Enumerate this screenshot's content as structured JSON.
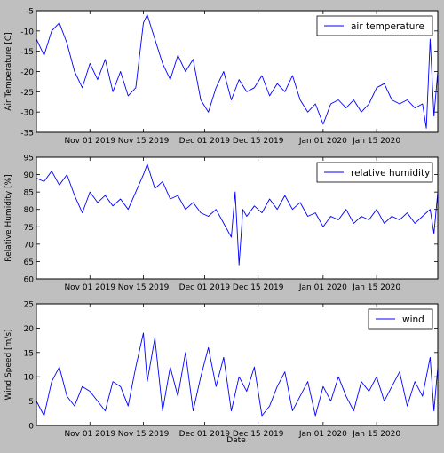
{
  "figure": {
    "xlabel": "Date"
  },
  "chart_data": [
    {
      "type": "line",
      "ylabel": "Air Temperature [C]",
      "ylim": [
        -35,
        -5
      ],
      "yticks": [
        -35,
        -30,
        -25,
        -20,
        -15,
        -10,
        -5
      ],
      "xlim": [
        "2019-10-18",
        "2020-01-31"
      ],
      "xticks": [
        "2019-11-01",
        "2019-11-15",
        "2019-12-01",
        "2019-12-15",
        "2020-01-01",
        "2020-01-15"
      ],
      "xtick_labels": [
        "Nov 01 2019",
        "Nov 15 2019",
        "Dec 01 2019",
        "Dec 15 2019",
        "Jan 01 2020",
        "Jan 15 2020"
      ],
      "legend": "top-right",
      "color": "#0000ff",
      "series": [
        {
          "name": "air temperature",
          "x": [
            "2019-10-18",
            "2019-10-20",
            "2019-10-22",
            "2019-10-24",
            "2019-10-26",
            "2019-10-28",
            "2019-10-30",
            "2019-11-01",
            "2019-11-03",
            "2019-11-05",
            "2019-11-07",
            "2019-11-09",
            "2019-11-11",
            "2019-11-13",
            "2019-11-15",
            "2019-11-16",
            "2019-11-18",
            "2019-11-20",
            "2019-11-22",
            "2019-11-24",
            "2019-11-26",
            "2019-11-28",
            "2019-11-30",
            "2019-12-02",
            "2019-12-04",
            "2019-12-06",
            "2019-12-08",
            "2019-12-10",
            "2019-12-12",
            "2019-12-14",
            "2019-12-16",
            "2019-12-18",
            "2019-12-20",
            "2019-12-22",
            "2019-12-24",
            "2019-12-26",
            "2019-12-28",
            "2019-12-30",
            "2020-01-01",
            "2020-01-03",
            "2020-01-05",
            "2020-01-07",
            "2020-01-09",
            "2020-01-11",
            "2020-01-13",
            "2020-01-15",
            "2020-01-17",
            "2020-01-19",
            "2020-01-21",
            "2020-01-23",
            "2020-01-25",
            "2020-01-27",
            "2020-01-28",
            "2020-01-29",
            "2020-01-30",
            "2020-01-31"
          ],
          "y": [
            -12,
            -16,
            -10,
            -8,
            -13,
            -20,
            -24,
            -18,
            -22,
            -17,
            -25,
            -20,
            -26,
            -24,
            -8,
            -6,
            -12,
            -18,
            -22,
            -16,
            -20,
            -17,
            -27,
            -30,
            -24,
            -20,
            -27,
            -22,
            -25,
            -24,
            -21,
            -26,
            -23,
            -25,
            -21,
            -27,
            -30,
            -28,
            -33,
            -28,
            -27,
            -29,
            -27,
            -30,
            -28,
            -24,
            -23,
            -27,
            -28,
            -27,
            -29,
            -28,
            -34,
            -12,
            -31,
            -20
          ]
        }
      ]
    },
    {
      "type": "line",
      "ylabel": "Relative Humidity [%]",
      "ylim": [
        60,
        95
      ],
      "yticks": [
        60,
        65,
        70,
        75,
        80,
        85,
        90,
        95
      ],
      "xlim": [
        "2019-10-18",
        "2020-01-31"
      ],
      "xticks": [
        "2019-11-01",
        "2019-11-15",
        "2019-12-01",
        "2019-12-15",
        "2020-01-01",
        "2020-01-15"
      ],
      "xtick_labels": [
        "Nov 01 2019",
        "Nov 15 2019",
        "Dec 01 2019",
        "Dec 15 2019",
        "Jan 01 2020",
        "Jan 15 2020"
      ],
      "legend": "top-right",
      "color": "#0000ff",
      "series": [
        {
          "name": "relative humidity",
          "x": [
            "2019-10-18",
            "2019-10-20",
            "2019-10-22",
            "2019-10-24",
            "2019-10-26",
            "2019-10-28",
            "2019-10-30",
            "2019-11-01",
            "2019-11-03",
            "2019-11-05",
            "2019-11-07",
            "2019-11-09",
            "2019-11-11",
            "2019-11-13",
            "2019-11-15",
            "2019-11-16",
            "2019-11-18",
            "2019-11-20",
            "2019-11-22",
            "2019-11-24",
            "2019-11-26",
            "2019-11-28",
            "2019-11-30",
            "2019-12-02",
            "2019-12-04",
            "2019-12-06",
            "2019-12-08",
            "2019-12-09",
            "2019-12-10",
            "2019-12-11",
            "2019-12-12",
            "2019-12-14",
            "2019-12-16",
            "2019-12-18",
            "2019-12-20",
            "2019-12-22",
            "2019-12-24",
            "2019-12-26",
            "2019-12-28",
            "2019-12-30",
            "2020-01-01",
            "2020-01-03",
            "2020-01-05",
            "2020-01-07",
            "2020-01-09",
            "2020-01-11",
            "2020-01-13",
            "2020-01-15",
            "2020-01-17",
            "2020-01-19",
            "2020-01-21",
            "2020-01-23",
            "2020-01-25",
            "2020-01-27",
            "2020-01-29",
            "2020-01-30",
            "2020-01-31"
          ],
          "y": [
            89,
            88,
            91,
            87,
            90,
            84,
            79,
            85,
            82,
            84,
            81,
            83,
            80,
            85,
            90,
            93,
            86,
            88,
            83,
            84,
            80,
            82,
            79,
            78,
            80,
            76,
            72,
            85,
            64,
            80,
            78,
            81,
            79,
            83,
            80,
            84,
            80,
            82,
            78,
            79,
            75,
            78,
            77,
            80,
            76,
            78,
            77,
            80,
            76,
            78,
            77,
            79,
            76,
            78,
            80,
            73,
            85
          ]
        }
      ]
    },
    {
      "type": "line",
      "ylabel": "Wind Speed [m/s]",
      "ylim": [
        0,
        25
      ],
      "yticks": [
        0,
        5,
        10,
        15,
        20,
        25
      ],
      "xlim": [
        "2019-10-18",
        "2020-01-31"
      ],
      "xticks": [
        "2019-11-01",
        "2019-11-15",
        "2019-12-01",
        "2019-12-15",
        "2020-01-01",
        "2020-01-15"
      ],
      "xtick_labels": [
        "Nov 01 2019",
        "Nov 15 2019",
        "Dec 01 2019",
        "Dec 15 2019",
        "Jan 01 2020",
        "Jan 15 2020"
      ],
      "legend": "top-right",
      "color": "#0000ff",
      "series": [
        {
          "name": "wind",
          "x": [
            "2019-10-18",
            "2019-10-20",
            "2019-10-22",
            "2019-10-24",
            "2019-10-26",
            "2019-10-28",
            "2019-10-30",
            "2019-11-01",
            "2019-11-03",
            "2019-11-05",
            "2019-11-07",
            "2019-11-09",
            "2019-11-11",
            "2019-11-13",
            "2019-11-15",
            "2019-11-16",
            "2019-11-18",
            "2019-11-20",
            "2019-11-22",
            "2019-11-24",
            "2019-11-26",
            "2019-11-28",
            "2019-11-30",
            "2019-12-02",
            "2019-12-04",
            "2019-12-06",
            "2019-12-08",
            "2019-12-10",
            "2019-12-12",
            "2019-12-14",
            "2019-12-16",
            "2019-12-18",
            "2019-12-20",
            "2019-12-22",
            "2019-12-24",
            "2019-12-26",
            "2019-12-28",
            "2019-12-30",
            "2020-01-01",
            "2020-01-03",
            "2020-01-05",
            "2020-01-07",
            "2020-01-09",
            "2020-01-11",
            "2020-01-13",
            "2020-01-15",
            "2020-01-17",
            "2020-01-19",
            "2020-01-21",
            "2020-01-23",
            "2020-01-25",
            "2020-01-27",
            "2020-01-29",
            "2020-01-30",
            "2020-01-31"
          ],
          "y": [
            5,
            2,
            9,
            12,
            6,
            4,
            8,
            7,
            5,
            3,
            9,
            8,
            4,
            12,
            19,
            9,
            18,
            3,
            12,
            6,
            15,
            3,
            10,
            16,
            8,
            14,
            3,
            10,
            7,
            12,
            2,
            4,
            8,
            11,
            3,
            6,
            9,
            2,
            8,
            5,
            10,
            6,
            3,
            9,
            7,
            10,
            5,
            8,
            11,
            4,
            9,
            6,
            14,
            3,
            12
          ]
        }
      ]
    }
  ]
}
